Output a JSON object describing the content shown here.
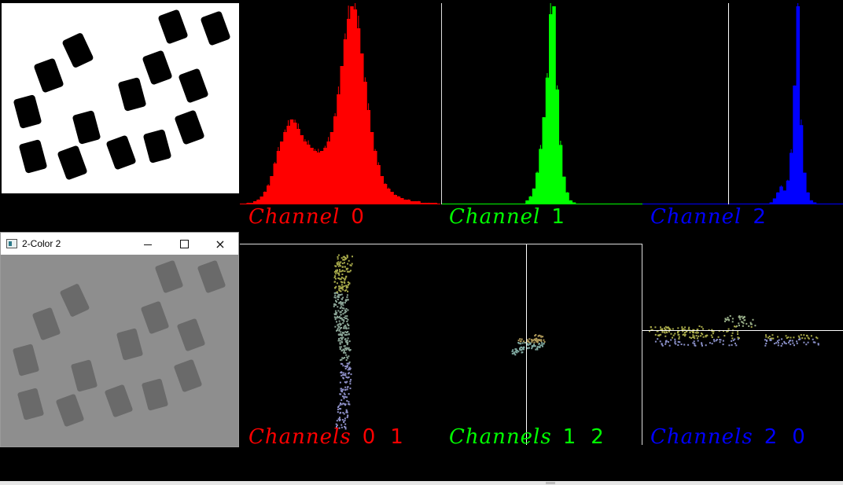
{
  "window": {
    "title": "2-Color 2",
    "controls": {
      "minimize": "minimize",
      "maximize": "maximize",
      "close": "×"
    }
  },
  "histograms": [
    {
      "label_word": "Channel",
      "numbers": [
        "0"
      ],
      "color": "#ff0000"
    },
    {
      "label_word": "Channel",
      "numbers": [
        "1"
      ],
      "color": "#00ff00"
    },
    {
      "label_word": "Channel",
      "numbers": [
        "2"
      ],
      "color": "#0000ff"
    }
  ],
  "scatter_plots": [
    {
      "label_word": "Channels",
      "numbers": [
        "0",
        "1"
      ],
      "color": "#ff0000"
    },
    {
      "label_word": "Channels",
      "numbers": [
        "1",
        "2"
      ],
      "color": "#00ff00"
    },
    {
      "label_word": "Channels",
      "numbers": [
        "2",
        "0"
      ],
      "color": "#0000ff"
    }
  ],
  "chart_data": [
    {
      "type": "bar",
      "series": [
        {
          "values": [
            0,
            0,
            1,
            1,
            2,
            3,
            5,
            8,
            12,
            18,
            26,
            34,
            40,
            46,
            50,
            54,
            52,
            48,
            44,
            40,
            38,
            36,
            34,
            33,
            34,
            36,
            40,
            46,
            56,
            70,
            88,
            105,
            118,
            126,
            124,
            112,
            96,
            78,
            60,
            46,
            34,
            25,
            18,
            13,
            10,
            8,
            6,
            5,
            4,
            3,
            3,
            2,
            2,
            2,
            1,
            1,
            1,
            1,
            1,
            0
          ]
        }
      ]
    },
    {
      "type": "bar",
      "series": [
        {
          "values": [
            0,
            0,
            0,
            0,
            0,
            0,
            0,
            0,
            0,
            0,
            0,
            0,
            0,
            0,
            0,
            0,
            0,
            0,
            0,
            0,
            0,
            0,
            0,
            0,
            0,
            2,
            4,
            8,
            16,
            28,
            44,
            64,
            96,
            100,
            58,
            30,
            14,
            6,
            2,
            1,
            0,
            0,
            0,
            0,
            0,
            0,
            0,
            0,
            0,
            0,
            0,
            0,
            0,
            0,
            0,
            0,
            0,
            0,
            0,
            0
          ]
        }
      ]
    },
    {
      "type": "bar",
      "series": [
        {
          "values": [
            0,
            0,
            0,
            0,
            0,
            0,
            0,
            0,
            0,
            0,
            0,
            0,
            0,
            0,
            0,
            0,
            0,
            0,
            0,
            0,
            0,
            0,
            0,
            0,
            0,
            0,
            0,
            0,
            0,
            0,
            0,
            0,
            0,
            0,
            0,
            0,
            0,
            0,
            1,
            3,
            6,
            9,
            7,
            12,
            26,
            60,
            100,
            40,
            16,
            6,
            2,
            1,
            0,
            0,
            0,
            0,
            0,
            0,
            0,
            0
          ]
        }
      ]
    }
  ]
}
